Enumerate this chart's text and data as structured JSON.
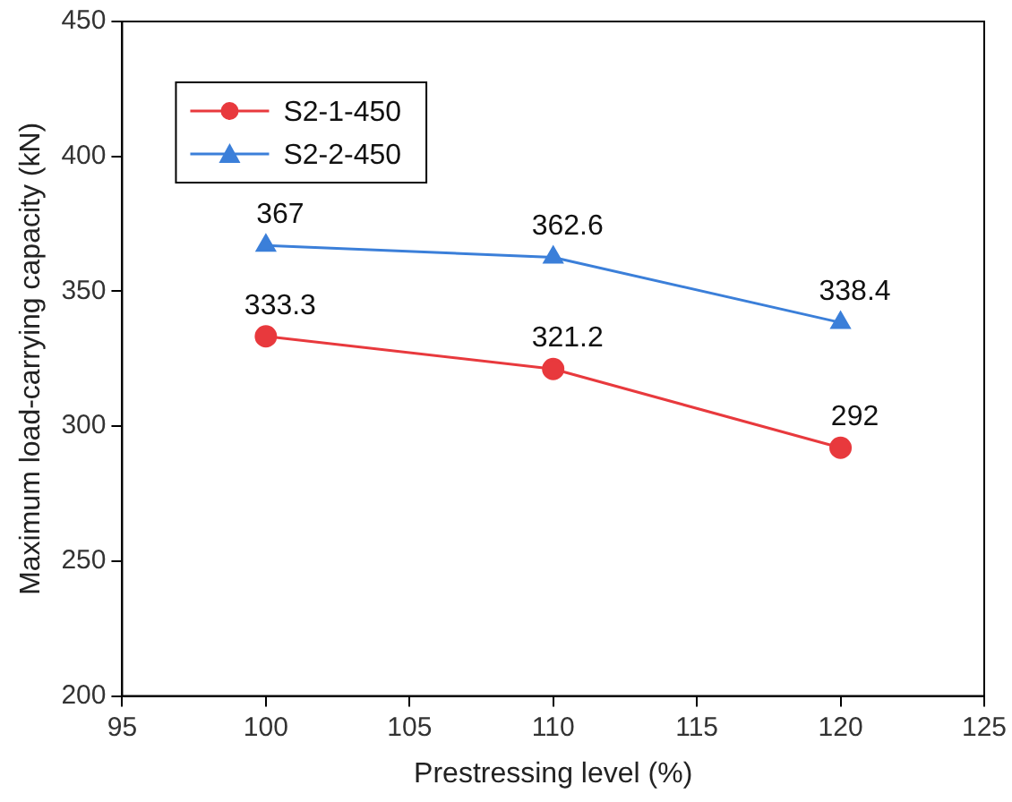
{
  "chart_data": {
    "type": "line",
    "xlabel": "Prestressing level (%)",
    "ylabel": "Maximum load-carrying capacity (kN)",
    "x": [
      100,
      110,
      120
    ],
    "series": [
      {
        "name": "S2-1-450",
        "color": "#e8393d",
        "values": [
          333.3,
          321.2,
          292
        ],
        "marker": "circle"
      },
      {
        "name": "S2-2-450",
        "color": "#3b7fd9",
        "values": [
          367,
          362.6,
          338.4
        ],
        "marker": "triangle"
      }
    ],
    "xlim": [
      95,
      125
    ],
    "xticks": [
      95,
      100,
      105,
      110,
      115,
      120,
      125
    ],
    "ylim": [
      200,
      450
    ],
    "yticks": [
      200,
      250,
      300,
      350,
      400,
      450
    ],
    "grid": false,
    "legend": "top left",
    "data_labels": true,
    "line_style": "solid"
  }
}
